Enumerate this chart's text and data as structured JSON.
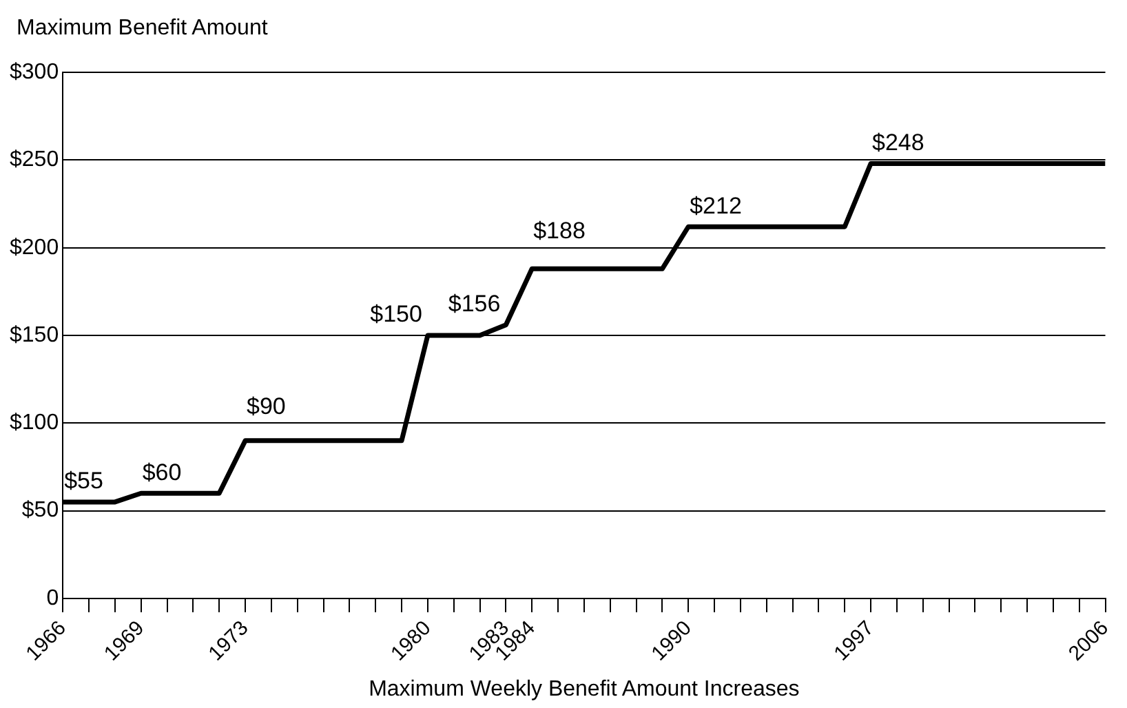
{
  "chart_data": {
    "type": "line",
    "ylabel": "Maximum Benefit Amount",
    "xlabel": "Maximum Weekly Benefit Amount Increases",
    "x": [
      1966,
      1968,
      1969,
      1972,
      1973,
      1979,
      1980,
      1982,
      1983,
      1984,
      1989,
      1990,
      1996,
      1997,
      2006
    ],
    "series": [
      {
        "color": "#000000",
        "values": [
          55,
          55,
          60,
          60,
          90,
          90,
          150,
          150,
          156,
          188,
          188,
          212,
          212,
          248,
          248
        ]
      }
    ],
    "xlim": [
      1966,
      2006
    ],
    "xticks": [
      1966,
      {
        "value": 1967,
        "label": null
      },
      {
        "value": 1968,
        "label": null
      },
      1969,
      {
        "value": 1970,
        "label": null
      },
      {
        "value": 1971,
        "label": null
      },
      {
        "value": 1972,
        "label": null
      },
      1973,
      {
        "value": 1974,
        "label": null
      },
      {
        "value": 1975,
        "label": null
      },
      {
        "value": 1976,
        "label": null
      },
      {
        "value": 1977,
        "label": null
      },
      {
        "value": 1978,
        "label": null
      },
      {
        "value": 1979,
        "label": null
      },
      1980,
      {
        "value": 1981,
        "label": null
      },
      {
        "value": 1982,
        "label": null
      },
      1983,
      1984,
      {
        "value": 1985,
        "label": null
      },
      {
        "value": 1986,
        "label": null
      },
      {
        "value": 1987,
        "label": null
      },
      {
        "value": 1988,
        "label": null
      },
      {
        "value": 1989,
        "label": null
      },
      1990,
      {
        "value": 1991,
        "label": null
      },
      {
        "value": 1992,
        "label": null
      },
      {
        "value": 1993,
        "label": null
      },
      {
        "value": 1994,
        "label": null
      },
      {
        "value": 1995,
        "label": null
      },
      {
        "value": 1996,
        "label": null
      },
      1997,
      {
        "value": 1998,
        "label": null
      },
      {
        "value": 1999,
        "label": null
      },
      {
        "value": 2000,
        "label": null
      },
      {
        "value": 2001,
        "label": null
      },
      {
        "value": 2002,
        "label": null
      },
      {
        "value": 2003,
        "label": null
      },
      {
        "value": 2004,
        "label": null
      },
      {
        "value": 2005,
        "label": null
      },
      2006
    ],
    "ylim": [
      0,
      300
    ],
    "yticks": [
      0,
      {
        "value": 50,
        "label": "$50"
      },
      {
        "value": 100,
        "label": "$100"
      },
      {
        "value": 150,
        "label": "$150"
      },
      {
        "value": 200,
        "label": "$200"
      },
      {
        "value": 250,
        "label": "$250"
      },
      {
        "value": 300,
        "label": "$300"
      }
    ],
    "grid": "y",
    "marker": "none",
    "line_style": "solid",
    "annotations": [
      {
        "text": "$55",
        "x": 1966,
        "y": 55
      },
      {
        "text": "$60",
        "x": 1969,
        "y": 60
      },
      {
        "text": "$90",
        "x": 1973,
        "y": 90
      },
      {
        "text": "$150",
        "x": 1980,
        "y": 150
      },
      {
        "text": "$156",
        "x": 1983,
        "y": 156
      },
      {
        "text": "$188",
        "x": 1984,
        "y": 188
      },
      {
        "text": "$212",
        "x": 1990,
        "y": 212
      },
      {
        "text": "$248",
        "x": 1997,
        "y": 248
      }
    ]
  }
}
